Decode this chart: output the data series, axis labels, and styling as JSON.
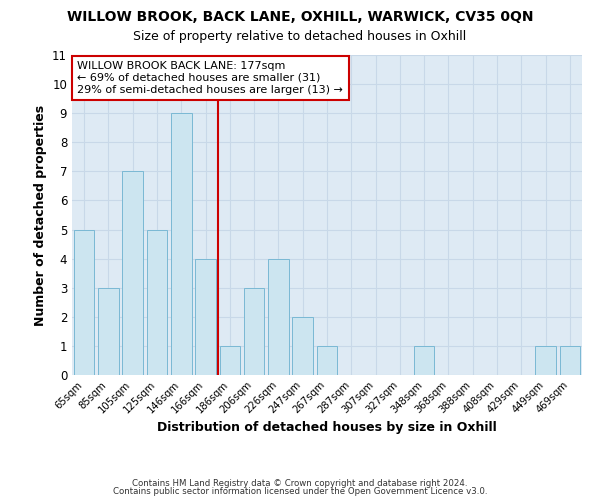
{
  "title": "WILLOW BROOK, BACK LANE, OXHILL, WARWICK, CV35 0QN",
  "subtitle": "Size of property relative to detached houses in Oxhill",
  "xlabel": "Distribution of detached houses by size in Oxhill",
  "ylabel": "Number of detached properties",
  "bar_labels": [
    "65sqm",
    "85sqm",
    "105sqm",
    "125sqm",
    "146sqm",
    "166sqm",
    "186sqm",
    "206sqm",
    "226sqm",
    "247sqm",
    "267sqm",
    "287sqm",
    "307sqm",
    "327sqm",
    "348sqm",
    "368sqm",
    "388sqm",
    "408sqm",
    "429sqm",
    "449sqm",
    "469sqm"
  ],
  "bar_values": [
    5,
    3,
    7,
    5,
    9,
    4,
    1,
    3,
    4,
    2,
    1,
    0,
    0,
    0,
    1,
    0,
    0,
    0,
    0,
    1,
    1
  ],
  "bar_color": "#cce5f0",
  "bar_edge_color": "#7ab8d4",
  "reference_line_x": 6,
  "reference_line_color": "#cc0000",
  "annotation_box_text": "WILLOW BROOK BACK LANE: 177sqm\n← 69% of detached houses are smaller (31)\n29% of semi-detached houses are larger (13) →",
  "ylim": [
    0,
    11
  ],
  "yticks": [
    0,
    1,
    2,
    3,
    4,
    5,
    6,
    7,
    8,
    9,
    10,
    11
  ],
  "grid_color": "#c8d8e8",
  "background_color": "#ffffff",
  "footer_line1": "Contains HM Land Registry data © Crown copyright and database right 2024.",
  "footer_line2": "Contains public sector information licensed under the Open Government Licence v3.0.",
  "title_fontsize": 10,
  "subtitle_fontsize": 9
}
